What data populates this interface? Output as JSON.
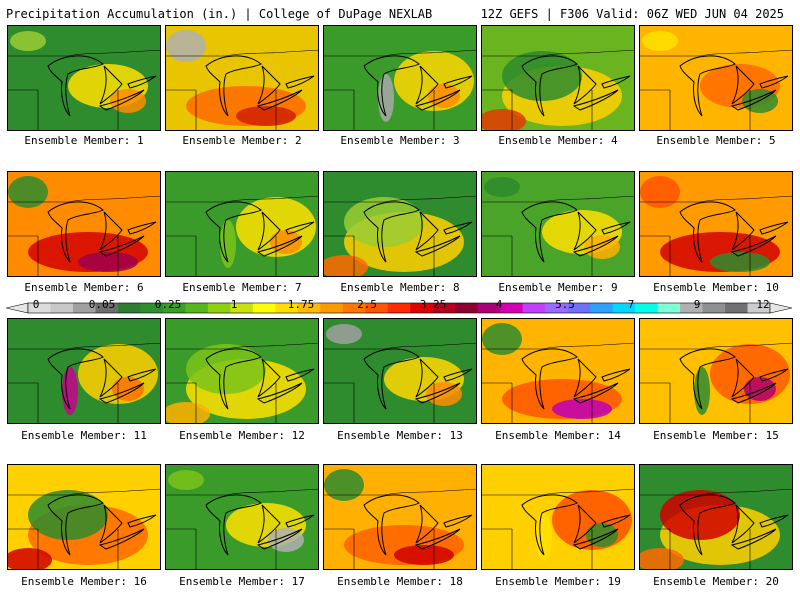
{
  "header": {
    "left": "Precipitation Accumulation (in.) | College of DuPage NEXLAB",
    "right": "12Z GEFS | F306 Valid: 06Z WED JUN 04 2025"
  },
  "colorbar": {
    "labels": [
      "0",
      "0.05",
      "0.25",
      "1",
      "1.75",
      "2.5",
      "3.25",
      "4",
      "5.5",
      "7",
      "9",
      "12"
    ],
    "colors": [
      "#dcdcdc",
      "#c8c8c8",
      "#a0a0a0",
      "#6e6e6e",
      "#2e7d32",
      "#2f8f2f",
      "#3a9e2a",
      "#58b51f",
      "#8fcf14",
      "#c8e20f",
      "#ffff00",
      "#ffdd00",
      "#ffbb00",
      "#ff9900",
      "#ff7700",
      "#ff5500",
      "#ff2a00",
      "#e00000",
      "#b4001e",
      "#8c0032",
      "#aa0078",
      "#d400b4",
      "#c040ff",
      "#9b6bff",
      "#7070ff",
      "#2fa0ff",
      "#00d8ff",
      "#00ffe8",
      "#7fffd4",
      "#b0b0b0",
      "#909090",
      "#707070",
      "#cccccc"
    ]
  },
  "members": [
    {
      "label": "Ensemble Member: 1",
      "base": "#2e8b2e",
      "blobs": [
        {
          "c": "#ffe000"
        },
        {
          "c": "#ff8c00"
        },
        {
          "c": "#9acd32"
        }
      ]
    },
    {
      "label": "Ensemble Member: 2",
      "base": "#e9c400",
      "blobs": [
        {
          "c": "#ff6a00"
        },
        {
          "c": "#d02000"
        },
        {
          "c": "#b0b0b0"
        }
      ]
    },
    {
      "label": "Ensemble Member: 3",
      "base": "#3a9a2a",
      "blobs": [
        {
          "c": "#ffd700"
        },
        {
          "c": "#ff8c00"
        },
        {
          "c": "#a8a8a8"
        }
      ]
    },
    {
      "label": "Ensemble Member: 4",
      "base": "#6ab51f",
      "blobs": [
        {
          "c": "#ffd000"
        },
        {
          "c": "#e33a00"
        },
        {
          "c": "#2e8b2e"
        }
      ]
    },
    {
      "label": "Ensemble Member: 5",
      "base": "#ffb400",
      "blobs": [
        {
          "c": "#ff6a00"
        },
        {
          "c": "#2e8b2e"
        },
        {
          "c": "#ffe000"
        }
      ]
    },
    {
      "label": "Ensemble Member: 6",
      "base": "#ff8c00",
      "blobs": [
        {
          "c": "#d40000"
        },
        {
          "c": "#a0004a"
        },
        {
          "c": "#2e8b2e"
        }
      ]
    },
    {
      "label": "Ensemble Member: 7",
      "base": "#3a9a2a",
      "blobs": [
        {
          "c": "#ffe000"
        },
        {
          "c": "#ff8c00"
        },
        {
          "c": "#7ac31a"
        }
      ]
    },
    {
      "label": "Ensemble Member: 8",
      "base": "#2e8b2e",
      "blobs": [
        {
          "c": "#ffd000"
        },
        {
          "c": "#ff6a00"
        },
        {
          "c": "#9acd32"
        }
      ]
    },
    {
      "label": "Ensemble Member: 9",
      "base": "#4aa42a",
      "blobs": [
        {
          "c": "#ffe000"
        },
        {
          "c": "#ffb000"
        },
        {
          "c": "#2e8b2e"
        }
      ]
    },
    {
      "label": "Ensemble Member: 10",
      "base": "#ff9a00",
      "blobs": [
        {
          "c": "#d40000"
        },
        {
          "c": "#2e8b2e"
        },
        {
          "c": "#ff5500"
        }
      ]
    },
    {
      "label": "Ensemble Member: 11",
      "base": "#2e8b2e",
      "blobs": [
        {
          "c": "#ffd000"
        },
        {
          "c": "#ff7000"
        },
        {
          "c": "#c8008c"
        }
      ]
    },
    {
      "label": "Ensemble Member: 12",
      "base": "#3a9a2a",
      "blobs": [
        {
          "c": "#ffe000"
        },
        {
          "c": "#ffb000"
        },
        {
          "c": "#7ac31a"
        }
      ]
    },
    {
      "label": "Ensemble Member: 13",
      "base": "#2e8b2e",
      "blobs": [
        {
          "c": "#ffd700"
        },
        {
          "c": "#ff8c00"
        },
        {
          "c": "#a0a0a0"
        }
      ]
    },
    {
      "label": "Ensemble Member: 14",
      "base": "#ffb400",
      "blobs": [
        {
          "c": "#ff5500"
        },
        {
          "c": "#c000b4"
        },
        {
          "c": "#2e8b2e"
        }
      ]
    },
    {
      "label": "Ensemble Member: 15",
      "base": "#ffc000",
      "blobs": [
        {
          "c": "#ff5a00"
        },
        {
          "c": "#b0006e"
        },
        {
          "c": "#2e8b2e"
        }
      ]
    },
    {
      "label": "Ensemble Member: 16",
      "base": "#ffd000",
      "blobs": [
        {
          "c": "#ff6a00"
        },
        {
          "c": "#d00000"
        },
        {
          "c": "#2e8b2e"
        }
      ]
    },
    {
      "label": "Ensemble Member: 17",
      "base": "#3a9a2a",
      "blobs": [
        {
          "c": "#ffe000"
        },
        {
          "c": "#b0b0b0"
        },
        {
          "c": "#7ac31a"
        }
      ]
    },
    {
      "label": "Ensemble Member: 18",
      "base": "#ffb000",
      "blobs": [
        {
          "c": "#ff6000"
        },
        {
          "c": "#d00000"
        },
        {
          "c": "#2e8b2e"
        }
      ]
    },
    {
      "label": "Ensemble Member: 19",
      "base": "#ffd000",
      "blobs": [
        {
          "c": "#ff5000"
        },
        {
          "c": "#2e8b2e"
        },
        {
          "c": "#ffe000"
        }
      ]
    },
    {
      "label": "Ensemble Member: 20",
      "base": "#2e8b2e",
      "blobs": [
        {
          "c": "#ffd000"
        },
        {
          "c": "#ff6a00"
        },
        {
          "c": "#d00000"
        }
      ]
    }
  ]
}
